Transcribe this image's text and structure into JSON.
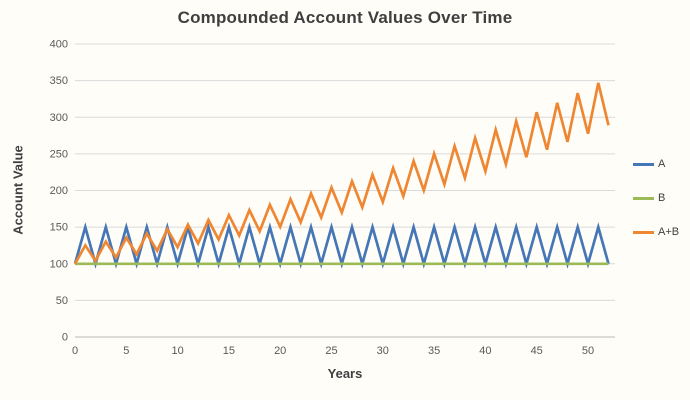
{
  "chart_data": {
    "type": "line",
    "title": "Compounded Account Values Over Time",
    "xlabel": "Years",
    "ylabel": "Account Value",
    "xlim": [
      0,
      52.6
    ],
    "ylim": [
      0,
      400
    ],
    "x_ticks": [
      0,
      5,
      10,
      15,
      20,
      25,
      30,
      35,
      40,
      45,
      50
    ],
    "y_ticks": [
      0,
      50,
      100,
      150,
      200,
      250,
      300,
      350,
      400
    ],
    "grid": "horizontal",
    "legend_position": "right",
    "gridline_color": "#dadada",
    "axisline_color": "#b9b9b9",
    "x": [
      0,
      1,
      2,
      3,
      4,
      5,
      6,
      7,
      8,
      9,
      10,
      11,
      12,
      13,
      14,
      15,
      16,
      17,
      18,
      19,
      20,
      21,
      22,
      23,
      24,
      25,
      26,
      27,
      28,
      29,
      30,
      31,
      32,
      33,
      34,
      35,
      36,
      37,
      38,
      39,
      40,
      41,
      42,
      43,
      44,
      45,
      46,
      47,
      48,
      49,
      50,
      51,
      52
    ],
    "series": [
      {
        "name": "A",
        "color": "#4576b5",
        "values": [
          100,
          150,
          100,
          150,
          100,
          150,
          100,
          150,
          100,
          150,
          100,
          150,
          100,
          150,
          100,
          150,
          100,
          150,
          100,
          150,
          100,
          150,
          100,
          150,
          100,
          150,
          100,
          150,
          100,
          150,
          100,
          150,
          100,
          150,
          100,
          150,
          100,
          150,
          100,
          150,
          100,
          150,
          100,
          150,
          100,
          150,
          100,
          150,
          100,
          150,
          100,
          150,
          100
        ]
      },
      {
        "name": "B",
        "color": "#9bbb59",
        "values": [
          100,
          100,
          100,
          100,
          100,
          100,
          100,
          100,
          100,
          100,
          100,
          100,
          100,
          100,
          100,
          100,
          100,
          100,
          100,
          100,
          100,
          100,
          100,
          100,
          100,
          100,
          100,
          100,
          100,
          100,
          100,
          100,
          100,
          100,
          100,
          100,
          100,
          100,
          100,
          100,
          100,
          100,
          100,
          100,
          100,
          100,
          100,
          100,
          100,
          100,
          100,
          100,
          100
        ]
      },
      {
        "name": "A+B",
        "color": "#ef8632",
        "values": [
          100,
          125,
          104.2,
          130.2,
          108.5,
          135.6,
          113,
          141.3,
          117.7,
          147.2,
          122.6,
          153.3,
          127.8,
          159.7,
          133.1,
          166.3,
          138.6,
          173.3,
          144.4,
          180.5,
          150.4,
          188,
          156.7,
          195.9,
          163.2,
          204,
          170,
          212.5,
          177.1,
          221.4,
          184.5,
          230.6,
          192.2,
          240.2,
          200.2,
          250.2,
          208.5,
          260.6,
          217.2,
          271.5,
          226.3,
          282.8,
          235.7,
          294.6,
          245.5,
          306.9,
          255.7,
          319.7,
          266.4,
          333,
          277.5,
          346.9,
          289
        ]
      }
    ]
  }
}
